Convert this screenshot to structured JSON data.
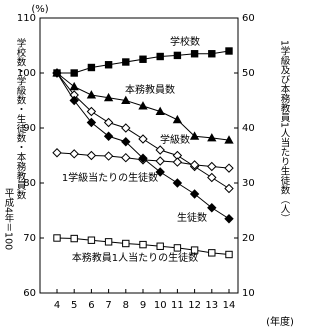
{
  "chart_data": {
    "type": "line",
    "y_unit": "(%)",
    "x_unit": "(年度)",
    "ylabel": "学校数・学級数・生徒数・本務教員数",
    "ylabel_note": "平成4年＝100",
    "y2label": "1学級及び本務教員1人当たり生徒数（人）",
    "categories": [
      "4",
      "5",
      "6",
      "7",
      "8",
      "9",
      "10",
      "11",
      "12",
      "13",
      "14"
    ],
    "ylim": [
      60,
      110
    ],
    "yticks": [
      60,
      70,
      80,
      90,
      100,
      110
    ],
    "y2lim": [
      10,
      60
    ],
    "y2ticks": [
      10,
      20,
      30,
      40,
      50,
      60
    ],
    "series": [
      {
        "name": "学校数",
        "color": "#000000",
        "marker": "square-filled",
        "values": [
          100,
          100,
          101,
          101.5,
          102,
          102.5,
          103,
          103.2,
          103.5,
          103.5,
          104
        ]
      },
      {
        "name": "本務教員数",
        "color": "#000000",
        "marker": "triangle-filled",
        "values": [
          100,
          97.5,
          96,
          95.5,
          95,
          94,
          93,
          91.5,
          88.5,
          88.2,
          87.8
        ]
      },
      {
        "name": "学級数",
        "color": "#000000",
        "marker": "diamond-open",
        "values": [
          100,
          96,
          93,
          91,
          90,
          88,
          86,
          85,
          83,
          81,
          79
        ]
      },
      {
        "name": "1学級当たりの生徒数",
        "color": "#000000",
        "marker": "diamond-open",
        "axis": "y2",
        "values": [
          35.5,
          35.3,
          35,
          34.9,
          34.6,
          34.2,
          34,
          33.8,
          33.3,
          33,
          32.7
        ]
      },
      {
        "name": "生徒数",
        "color": "#000000",
        "marker": "diamond-filled",
        "values": [
          100,
          95,
          91,
          88.5,
          87.5,
          84.5,
          82,
          80,
          78,
          75.5,
          73.5
        ]
      },
      {
        "name": "本務教員1人当たりの生徒数",
        "color": "#000000",
        "marker": "square-open",
        "axis": "y2",
        "values": [
          20,
          19.9,
          19.6,
          19.3,
          19,
          18.8,
          18.5,
          18.2,
          17.8,
          17.3,
          17
        ]
      }
    ]
  }
}
